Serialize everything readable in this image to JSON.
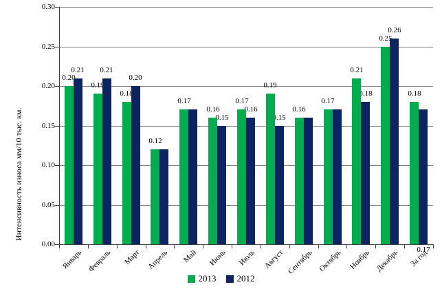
{
  "chart_data": {
    "type": "bar",
    "title": "",
    "xlabel": "",
    "ylabel": "Интенсивность износа мм/10 тыс. км.",
    "categories": [
      "Январь",
      "Февраль",
      "Март",
      "Апрель",
      "Май",
      "Июнь",
      "Июль",
      "Август",
      "Сентябрь",
      "Октябрь",
      "Ноябрь",
      "Декабрь",
      "За год"
    ],
    "series": [
      {
        "name": "2013",
        "color": "#00AC4E",
        "values": [
          0.2,
          0.19,
          0.18,
          0.12,
          0.17,
          0.16,
          0.17,
          0.19,
          0.16,
          0.17,
          0.21,
          0.25,
          0.18
        ]
      },
      {
        "name": "2012",
        "color": "#0D2462",
        "values": [
          0.21,
          0.21,
          0.2,
          0.12,
          0.17,
          0.15,
          0.16,
          0.15,
          0.16,
          0.17,
          0.18,
          0.26,
          0.17
        ]
      }
    ],
    "ylim": [
      0.0,
      0.3
    ],
    "y_tick_step": 0.05,
    "y_ticks": [
      "0.00",
      "0.05",
      "0.10",
      "0.15",
      "0.20",
      "0.25",
      "0.30"
    ],
    "grid": true,
    "legend_position": "bottom",
    "data_labels": true,
    "second_series_label_display": [
      "normal",
      "normal",
      "normal",
      "hidden",
      "hidden",
      "normal",
      "normal",
      "normal",
      "hidden",
      "hidden",
      "normal",
      "normal",
      "below-axis"
    ],
    "colors": {
      "grid": "#808080",
      "axis": "#404040",
      "text": "#000000",
      "background": "#ffffff"
    }
  }
}
